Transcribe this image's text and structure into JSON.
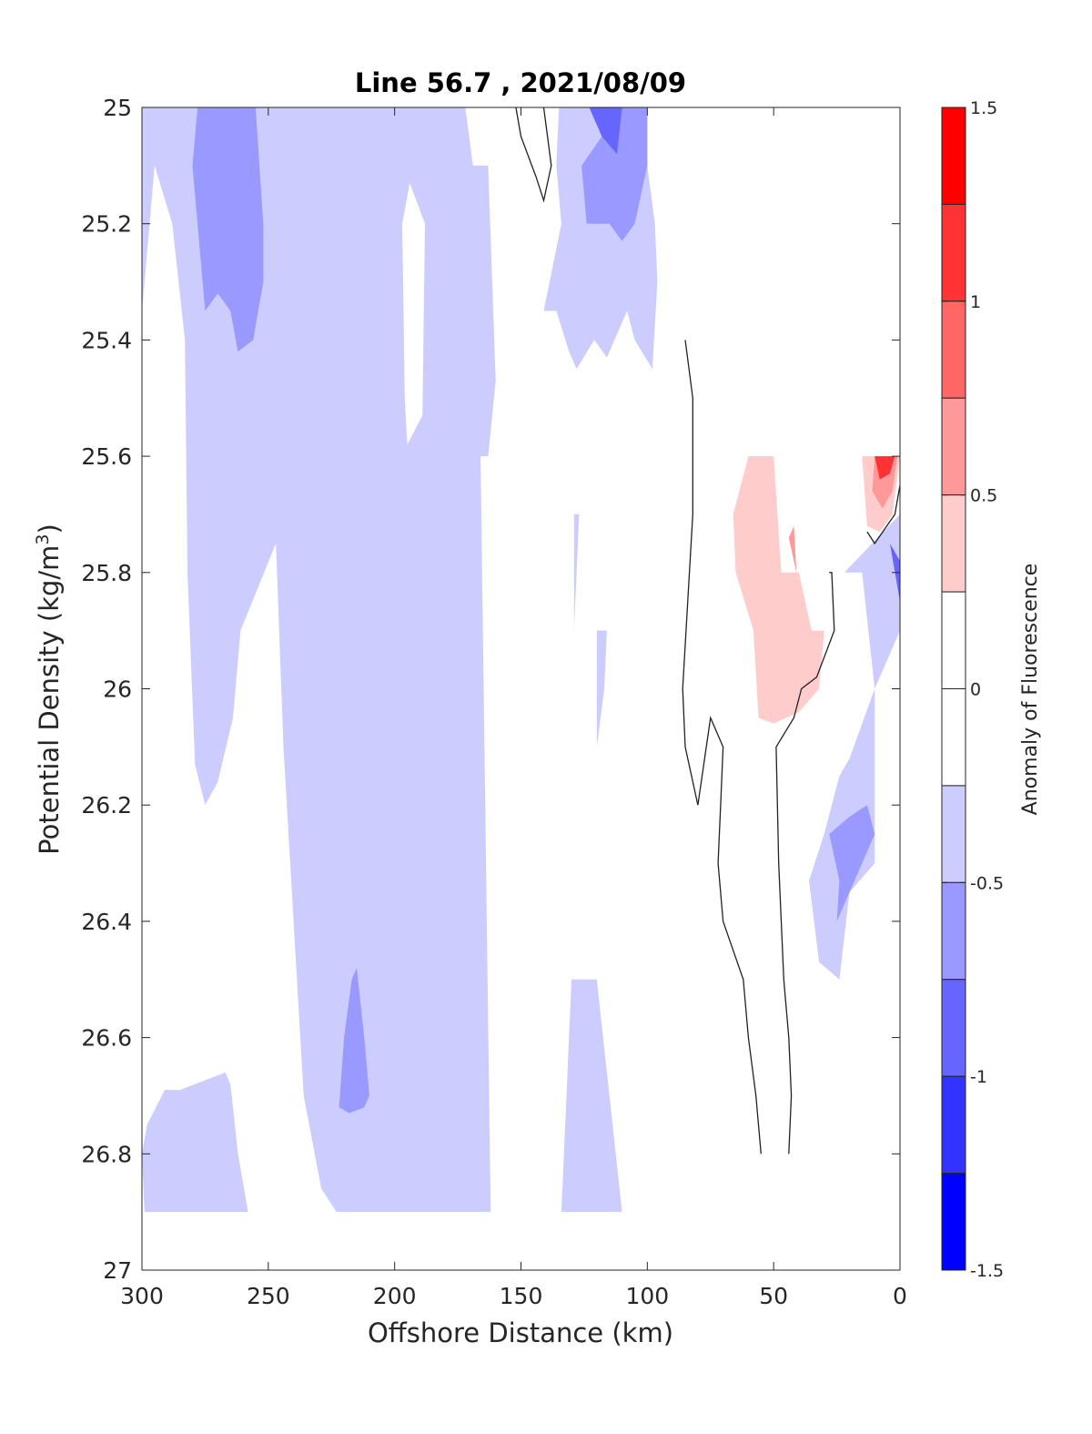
{
  "chart_data": {
    "type": "contour",
    "title": "Line 56.7 , 2021/08/09",
    "xlabel": "Offshore Distance (km)",
    "ylabel": "Potential Density (kg/m³)",
    "ylabel_main": "Potential Density (kg/m",
    "ylabel_sup": "3",
    "ylabel_end": ")",
    "colorbar_label": "Anomaly of Fluorescence",
    "xlim": [
      300,
      0
    ],
    "ylim": [
      25,
      27
    ],
    "x_reversed": true,
    "y_reversed": true,
    "xticks": [
      300,
      250,
      200,
      150,
      100,
      50,
      0
    ],
    "xtick_labels": [
      "300",
      "250",
      "200",
      "150",
      "100",
      "50",
      "0"
    ],
    "yticks": [
      25,
      25.2,
      25.4,
      25.6,
      25.8,
      26,
      26.2,
      26.4,
      26.6,
      26.8,
      27
    ],
    "ytick_labels": [
      "25",
      "25.2",
      "25.4",
      "25.6",
      "25.8",
      "26",
      "26.2",
      "26.4",
      "26.6",
      "26.8",
      "27"
    ],
    "colorbar": {
      "range": [
        -1.5,
        1.5
      ],
      "ticks": [
        1.5,
        1,
        0.5,
        0,
        -0.5,
        -1,
        -1.5
      ],
      "tick_labels": [
        "1.5",
        "1",
        "0.5",
        "0",
        "-0.5",
        "-1",
        "-1.5"
      ],
      "levels": [
        {
          "from": 1.25,
          "to": 1.5,
          "color": "#ff0000"
        },
        {
          "from": 1.0,
          "to": 1.25,
          "color": "#ff3333"
        },
        {
          "from": 0.75,
          "to": 1.0,
          "color": "#ff6666"
        },
        {
          "from": 0.5,
          "to": 0.75,
          "color": "#ff9999"
        },
        {
          "from": 0.25,
          "to": 0.5,
          "color": "#ffcccc"
        },
        {
          "from": 0.0,
          "to": 0.25,
          "color": "#ffffff"
        },
        {
          "from": -0.25,
          "to": 0.0,
          "color": "#ffffff"
        },
        {
          "from": -0.5,
          "to": -0.25,
          "color": "#ccccff"
        },
        {
          "from": -0.75,
          "to": -0.5,
          "color": "#9999ff"
        },
        {
          "from": -1.0,
          "to": -0.75,
          "color": "#6666ff"
        },
        {
          "from": -1.25,
          "to": -1.0,
          "color": "#3333ff"
        },
        {
          "from": -1.5,
          "to": -1.25,
          "color": "#0000ff"
        }
      ]
    },
    "regions": [
      {
        "level": -0.375,
        "points": [
          [
            300,
            25
          ],
          [
            172,
            25
          ],
          [
            169,
            25.1
          ],
          [
            163,
            25.1
          ],
          [
            160,
            25.47
          ],
          [
            163,
            25.6
          ],
          [
            166,
            25.6
          ],
          [
            162,
            26.9
          ],
          [
            223,
            26.9
          ],
          [
            229,
            26.86
          ],
          [
            236,
            26.7
          ],
          [
            240,
            26.4
          ],
          [
            244,
            26.1
          ],
          [
            247,
            25.75
          ],
          [
            261,
            25.9
          ],
          [
            264,
            26.05
          ],
          [
            270,
            26.16
          ],
          [
            275,
            26.2
          ],
          [
            279,
            26.13
          ],
          [
            282,
            25.8
          ],
          [
            283,
            25.4
          ],
          [
            288,
            25.2
          ],
          [
            295,
            25.1
          ],
          [
            300,
            25.35
          ]
        ]
      },
      {
        "level": 0.125,
        "points": [
          [
            194,
            25.13
          ],
          [
            188,
            25.2
          ],
          [
            189,
            25.53
          ],
          [
            195,
            25.58
          ],
          [
            196,
            25.5
          ],
          [
            197,
            25.2
          ]
        ]
      },
      {
        "level": -0.375,
        "points": [
          [
            135,
            25
          ],
          [
            100,
            25
          ],
          [
            100,
            25.1
          ],
          [
            97,
            25.2
          ],
          [
            96,
            25.3
          ],
          [
            98,
            25.45
          ],
          [
            105,
            25.4
          ],
          [
            108,
            25.35
          ],
          [
            116,
            25.43
          ],
          [
            121,
            25.4
          ],
          [
            128,
            25.45
          ],
          [
            131,
            25.42
          ],
          [
            136,
            25.35
          ],
          [
            141,
            25.35
          ],
          [
            134,
            25.2
          ],
          [
            136,
            25.1
          ]
        ]
      },
      {
        "level": -0.375,
        "points": [
          [
            242,
            25.3
          ],
          [
            232,
            25.3
          ],
          [
            238,
            25.2
          ],
          [
            235,
            25.03
          ],
          [
            229,
            25
          ],
          [
            230,
            25.1
          ],
          [
            230,
            25.15
          ]
        ]
      },
      {
        "level": -0.375,
        "points": [
          [
            299,
            26.9
          ],
          [
            258,
            26.9
          ],
          [
            262,
            26.8
          ],
          [
            265,
            26.68
          ],
          [
            267,
            26.66
          ],
          [
            285,
            26.69
          ],
          [
            291,
            26.69
          ],
          [
            298,
            26.75
          ],
          [
            300,
            26.8
          ]
        ]
      },
      {
        "level": -0.375,
        "points": [
          [
            134,
            26.9
          ],
          [
            110,
            26.9
          ],
          [
            115,
            26.7
          ],
          [
            120,
            26.5
          ],
          [
            130,
            26.5
          ],
          [
            132,
            26.7
          ]
        ]
      },
      {
        "level": -0.375,
        "points": [
          [
            129,
            25.7
          ],
          [
            127,
            25.7
          ],
          [
            128,
            25.8
          ],
          [
            129,
            25.9
          ]
        ]
      },
      {
        "level": -0.375,
        "points": [
          [
            120,
            25.9
          ],
          [
            116,
            25.9
          ],
          [
            117,
            26.0
          ],
          [
            120,
            26.1
          ]
        ]
      },
      {
        "level": -0.375,
        "points": [
          [
            10,
            26.0
          ],
          [
            20,
            26.12
          ],
          [
            24,
            26.15
          ],
          [
            30,
            26.25
          ],
          [
            36,
            26.33
          ],
          [
            32,
            26.47
          ],
          [
            24,
            26.5
          ],
          [
            20,
            26.35
          ],
          [
            10,
            26.3
          ],
          [
            10,
            26.15
          ]
        ]
      },
      {
        "level": -0.375,
        "points": [
          [
            22,
            25.8
          ],
          [
            0,
            25.7
          ],
          [
            0,
            25.9
          ],
          [
            5,
            25.95
          ],
          [
            10,
            26
          ],
          [
            15,
            25.8
          ]
        ]
      },
      {
        "level": -0.625,
        "points": [
          [
            280,
            25.1
          ],
          [
            278,
            25
          ],
          [
            255,
            25
          ],
          [
            252,
            25.2
          ],
          [
            252,
            25.3
          ],
          [
            256,
            25.4
          ],
          [
            262,
            25.42
          ],
          [
            265,
            25.35
          ],
          [
            270,
            25.32
          ],
          [
            275,
            25.35
          ]
        ]
      },
      {
        "level": -0.625,
        "points": [
          [
            222,
            26.72
          ],
          [
            218,
            26.73
          ],
          [
            212,
            26.72
          ],
          [
            210,
            26.7
          ],
          [
            212,
            26.6
          ],
          [
            215,
            26.48
          ],
          [
            217,
            26.5
          ],
          [
            220,
            26.6
          ]
        ]
      },
      {
        "level": -0.625,
        "points": [
          [
            126,
            25.1
          ],
          [
            110,
            25
          ],
          [
            100,
            25
          ],
          [
            100,
            25.1
          ],
          [
            105,
            25.2
          ],
          [
            110,
            25.23
          ],
          [
            115,
            25.2
          ],
          [
            124,
            25.2
          ]
        ]
      },
      {
        "level": -0.625,
        "points": [
          [
            24,
            26.33
          ],
          [
            28,
            26.25
          ],
          [
            20,
            26.22
          ],
          [
            13,
            26.2
          ],
          [
            10,
            26.25
          ],
          [
            20,
            26.35
          ],
          [
            25,
            26.4
          ]
        ]
      },
      {
        "level": -0.875,
        "points": [
          [
            123,
            25
          ],
          [
            110,
            25
          ],
          [
            112,
            25.08
          ],
          [
            118,
            25.05
          ]
        ]
      },
      {
        "level": -0.875,
        "points": [
          [
            4,
            25.75
          ],
          [
            0,
            25.78
          ],
          [
            0,
            25.85
          ]
        ]
      },
      {
        "level": 0.375,
        "points": [
          [
            60,
            25.6
          ],
          [
            50,
            25.6
          ],
          [
            47,
            25.8
          ],
          [
            40,
            25.8
          ],
          [
            35,
            25.9
          ],
          [
            30,
            25.9
          ],
          [
            32,
            26.0
          ],
          [
            40,
            26.04
          ],
          [
            50,
            26.06
          ],
          [
            56,
            26.05
          ],
          [
            58,
            25.9
          ],
          [
            65,
            25.8
          ],
          [
            66,
            25.7
          ]
        ]
      },
      {
        "level": 0.375,
        "points": [
          [
            10,
            25.6
          ],
          [
            0,
            25.6
          ],
          [
            3,
            25.7
          ],
          [
            8,
            25.73
          ],
          [
            13,
            25.72
          ],
          [
            15,
            25.6
          ]
        ]
      },
      {
        "level": 0.625,
        "points": [
          [
            10,
            25.6
          ],
          [
            1,
            25.6
          ],
          [
            3,
            25.66
          ],
          [
            7,
            25.69
          ],
          [
            11,
            25.66
          ]
        ]
      },
      {
        "level": 0.625,
        "points": [
          [
            41,
            25.8
          ],
          [
            40,
            25.82
          ],
          [
            44,
            25.74
          ],
          [
            42,
            25.72
          ]
        ]
      },
      {
        "level": 1.125,
        "points": [
          [
            10,
            25.6
          ],
          [
            2,
            25.6
          ],
          [
            4,
            25.63
          ],
          [
            8,
            25.64
          ]
        ]
      }
    ],
    "contour_lines": [
      {
        "points": [
          [
            152,
            25
          ],
          [
            150,
            25.05
          ],
          [
            144,
            25.12
          ],
          [
            141,
            25.16
          ],
          [
            138,
            25.1
          ],
          [
            141,
            25
          ]
        ]
      },
      {
        "points": [
          [
            85,
            25.4
          ],
          [
            82,
            25.5
          ],
          [
            82,
            25.7
          ],
          [
            86,
            26
          ],
          [
            85,
            26.1
          ],
          [
            80,
            26.2
          ],
          [
            75,
            26.05
          ],
          [
            70,
            26.1
          ],
          [
            71,
            26.2
          ],
          [
            72,
            26.3
          ],
          [
            70,
            26.4
          ],
          [
            62,
            26.5
          ],
          [
            60,
            26.6
          ],
          [
            57,
            26.7
          ],
          [
            55,
            26.8
          ]
        ]
      },
      {
        "points": [
          [
            44,
            26.8
          ],
          [
            43,
            26.7
          ],
          [
            44,
            26.6
          ],
          [
            46,
            26.5
          ],
          [
            48,
            26.3
          ],
          [
            49,
            26.1
          ],
          [
            42,
            26.05
          ],
          [
            39,
            26.0
          ],
          [
            33,
            25.98
          ],
          [
            26,
            25.9
          ],
          [
            27,
            25.8
          ],
          [
            28,
            25.8
          ]
        ]
      },
      {
        "points": [
          [
            13,
            25.73
          ],
          [
            10,
            25.75
          ],
          [
            2,
            25.7
          ],
          [
            0,
            25.65
          ]
        ]
      }
    ]
  }
}
